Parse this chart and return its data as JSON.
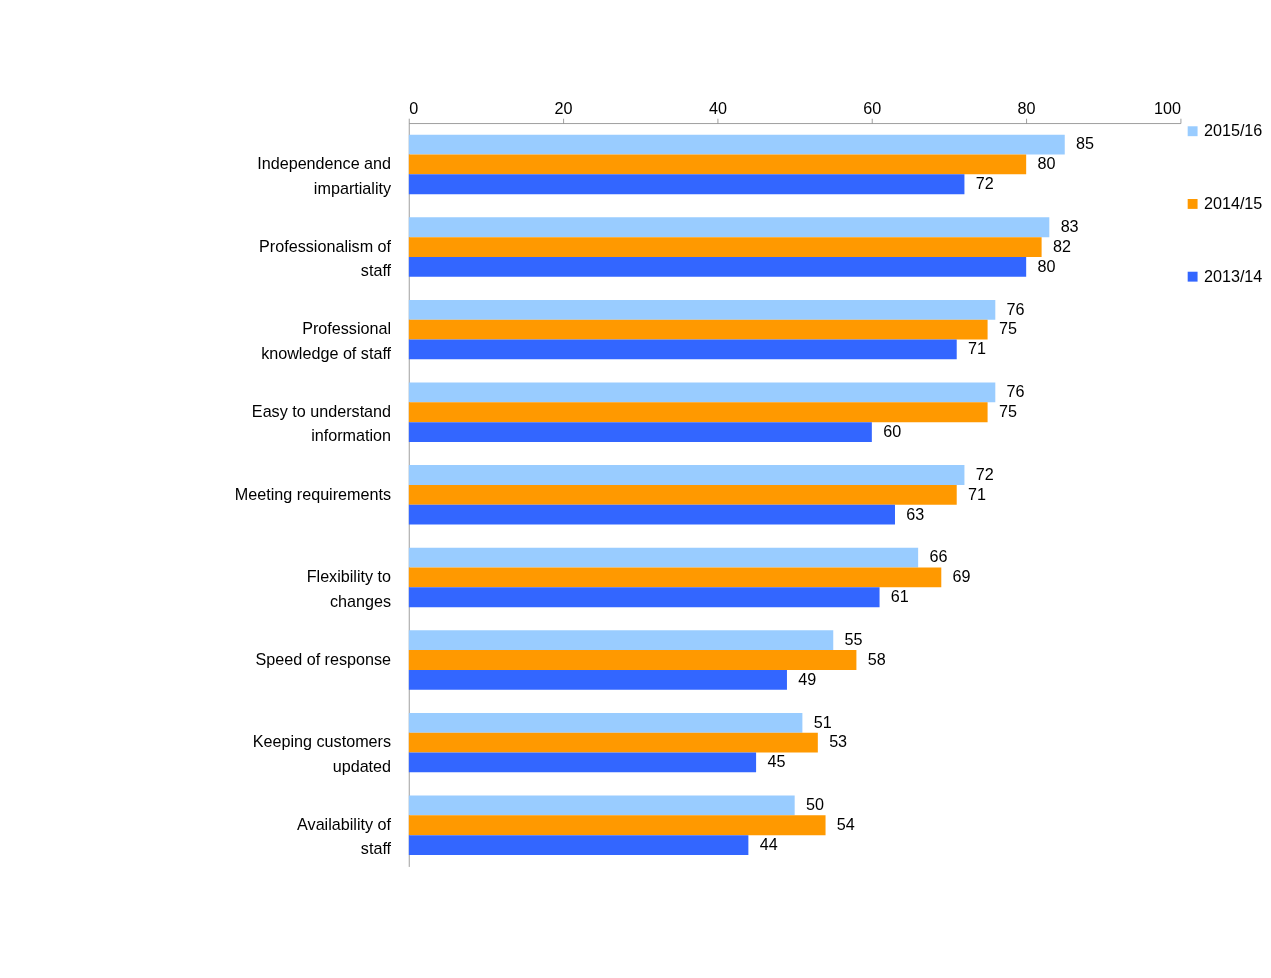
{
  "chart_data": {
    "type": "bar",
    "orientation": "horizontal",
    "categories": [
      "Independence and impartiality",
      "Professionalism of staff",
      "Professional knowledge of staff",
      "Easy to understand information",
      "Meeting requirements",
      "Flexibility to changes",
      "Speed of response",
      "Keeping customers updated",
      "Availability of staff"
    ],
    "series": [
      {
        "name": "2015/16",
        "color": "#99ccff",
        "values": [
          85,
          83,
          76,
          76,
          72,
          66,
          55,
          51,
          50
        ]
      },
      {
        "name": "2014/15",
        "color": "#ff9900",
        "values": [
          80,
          82,
          75,
          75,
          71,
          69,
          58,
          53,
          54
        ]
      },
      {
        "name": "2013/14",
        "color": "#3366ff",
        "values": [
          72,
          80,
          71,
          60,
          63,
          61,
          49,
          45,
          44
        ]
      }
    ],
    "xlim": [
      0,
      100
    ],
    "xticks": [
      0,
      20,
      40,
      60,
      80,
      100
    ],
    "data_labels": true,
    "grid": false,
    "legend": "right"
  }
}
